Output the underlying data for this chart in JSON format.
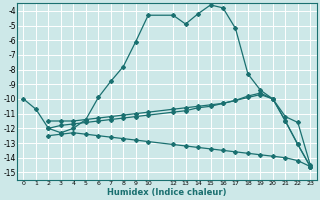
{
  "xlabel": "Humidex (Indice chaleur)",
  "bg_color": "#cde8e8",
  "grid_color": "#ffffff",
  "line_color": "#1a7070",
  "xlim": [
    -0.5,
    23.5
  ],
  "ylim": [
    -15.5,
    -3.5
  ],
  "xtick_vals": [
    0,
    1,
    2,
    3,
    4,
    5,
    6,
    7,
    8,
    9,
    10,
    12,
    13,
    14,
    15,
    16,
    17,
    18,
    19,
    20,
    21,
    22,
    23
  ],
  "ytick_vals": [
    -4,
    -5,
    -6,
    -7,
    -8,
    -9,
    -10,
    -11,
    -12,
    -13,
    -14,
    -15
  ],
  "line_main_x": [
    0,
    1,
    2,
    3,
    4,
    5,
    6,
    7,
    8,
    9,
    10,
    12,
    13,
    14,
    15,
    16,
    17,
    18,
    19,
    20,
    21,
    22,
    23
  ],
  "line_main_y": [
    -10,
    -10.7,
    -12.0,
    -12.3,
    -12.0,
    -11.4,
    -9.9,
    -8.8,
    -7.8,
    -6.1,
    -4.3,
    -4.3,
    -4.9,
    -4.2,
    -3.6,
    -3.8,
    -5.2,
    -8.3,
    -9.4,
    -10.0,
    -11.5,
    -13.1,
    -14.6
  ],
  "line2_x": [
    2,
    3,
    4,
    5,
    6,
    7,
    8,
    9,
    10,
    12,
    13,
    14,
    15,
    16,
    17,
    18,
    19,
    20,
    21,
    22,
    23
  ],
  "line2_y": [
    -11.5,
    -11.5,
    -11.5,
    -11.4,
    -11.3,
    -11.2,
    -11.1,
    -11.0,
    -10.9,
    -10.7,
    -10.6,
    -10.5,
    -10.4,
    -10.3,
    -10.1,
    -9.9,
    -9.7,
    -10.0,
    -11.2,
    -11.6,
    -14.5
  ],
  "line3_x": [
    2,
    3,
    4,
    5,
    6,
    7,
    8,
    9,
    10,
    12,
    13,
    14,
    15,
    16,
    17,
    18,
    19,
    20,
    21,
    22,
    23
  ],
  "line3_y": [
    -12.0,
    -11.8,
    -11.7,
    -11.6,
    -11.5,
    -11.4,
    -11.3,
    -11.2,
    -11.1,
    -10.9,
    -10.8,
    -10.6,
    -10.5,
    -10.3,
    -10.1,
    -9.8,
    -9.6,
    -10.0,
    -11.5,
    -13.1,
    -14.6
  ],
  "line4_x": [
    2,
    3,
    4,
    5,
    6,
    7,
    8,
    9,
    10,
    12,
    13,
    14,
    15,
    16,
    17,
    18,
    19,
    20,
    21,
    22,
    23
  ],
  "line4_y": [
    -12.5,
    -12.4,
    -12.3,
    -12.4,
    -12.5,
    -12.6,
    -12.7,
    -12.8,
    -12.9,
    -13.1,
    -13.2,
    -13.3,
    -13.4,
    -13.5,
    -13.6,
    -13.7,
    -13.8,
    -13.9,
    -14.0,
    -14.2,
    -14.6
  ]
}
